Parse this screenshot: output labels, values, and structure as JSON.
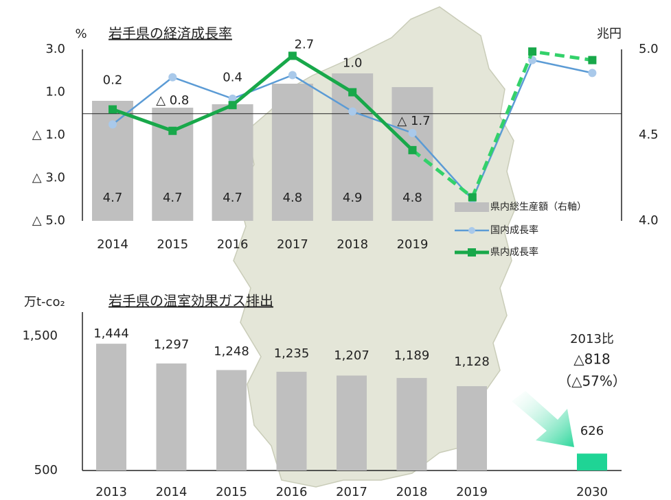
{
  "chart_data": [
    {
      "type": "combo",
      "title": "岩手県の経済成長率",
      "y_label": "%",
      "y2_label": "兆円",
      "categories": [
        "2014",
        "2015",
        "2016",
        "2017",
        "2018",
        "2019",
        null,
        null,
        null
      ],
      "ylim": [
        -5,
        3
      ],
      "yticks": [
        {
          "value": 3,
          "label": "3.0"
        },
        {
          "value": 1,
          "label": "1.0"
        },
        {
          "value": -1,
          "label": "△ 1.0"
        },
        {
          "value": -3,
          "label": "△ 3.0"
        },
        {
          "value": -5,
          "label": "△ 5.0"
        }
      ],
      "y2lim": [
        4.0,
        5.0
      ],
      "y2ticks": [
        {
          "value": 5,
          "label": "5.0"
        },
        4.5,
        {
          "value": 4,
          "label": "4.0"
        }
      ],
      "zero_line": true,
      "legend": "right",
      "series": [
        {
          "name": "県内総生産額（右軸）",
          "type": "bar",
          "axis": "y2",
          "color": "#bfbfbf",
          "values": [
            4.7,
            4.66,
            4.68,
            4.8,
            4.86,
            4.78,
            null,
            null,
            null
          ],
          "value_labels": [
            "4.7",
            "4.7",
            "4.7",
            "4.8",
            "4.9",
            "4.8",
            null,
            null,
            null
          ]
        },
        {
          "name": "国内成長率",
          "type": "line",
          "color": "#5b9bd5",
          "marker_color": "#a9c9ea",
          "values": [
            -0.5,
            1.7,
            0.7,
            1.8,
            0.1,
            -0.9,
            -4.0,
            2.5,
            1.9
          ]
        },
        {
          "name": "県内成長率",
          "type": "line",
          "color": "#18a84a",
          "dash_color": "#33d16a",
          "dashed_from": 5,
          "values": [
            0.2,
            -0.8,
            0.4,
            2.7,
            1.0,
            -1.7,
            -3.9,
            2.9,
            2.5
          ],
          "value_labels": [
            "0.2",
            "△ 0.8",
            "0.4",
            "2.7",
            "1.0",
            "△ 1.7",
            null,
            null,
            null
          ]
        }
      ]
    },
    {
      "type": "bar",
      "title": "岩手県の温室効果ガス排出",
      "y_label": "万t-co₂",
      "categories": [
        "2013",
        "2014",
        "2015",
        "2016",
        "2017",
        "2018",
        "2019",
        "2030"
      ],
      "values": [
        1444,
        1297,
        1248,
        1235,
        1207,
        1189,
        1128,
        626
      ],
      "value_labels": [
        "1,444",
        "1,297",
        "1,248",
        "1,235",
        "1,207",
        "1,189",
        "1,128",
        "626"
      ],
      "colors": [
        "#bfbfbf",
        "#bfbfbf",
        "#bfbfbf",
        "#bfbfbf",
        "#bfbfbf",
        "#bfbfbf",
        "#bfbfbf",
        "#1fd495"
      ],
      "ylim": [
        500,
        1700
      ],
      "yticks": [
        {
          "value": 1500,
          "label": "1,500"
        },
        500
      ],
      "annotation": [
        "2013比",
        "△818",
        "（△57%）"
      ]
    }
  ]
}
